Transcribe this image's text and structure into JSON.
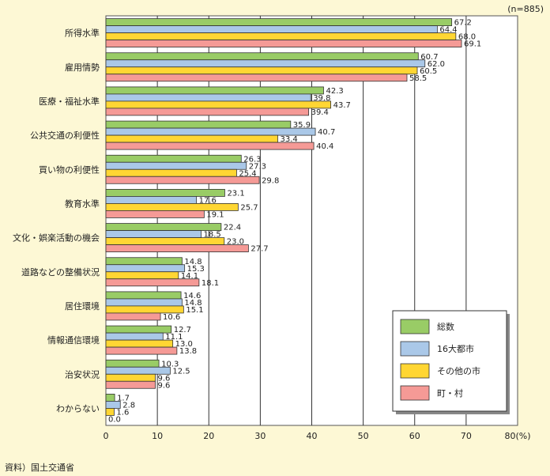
{
  "note": "(n=885)",
  "source": "資料）国土交通省",
  "chart_data": {
    "type": "bar",
    "orientation": "horizontal",
    "xlim": [
      0,
      80
    ],
    "xticks": [
      "0",
      "10",
      "20",
      "30",
      "40",
      "50",
      "60",
      "70",
      "80(%)"
    ],
    "grid": true,
    "legend_position": "bottom-right",
    "categories": [
      "所得水準",
      "雇用情勢",
      "医療・福祉水準",
      "公共交通の利便性",
      "買い物の利便性",
      "教育水準",
      "文化・娯楽活動の機会",
      "道路などの整備状況",
      "居住環境",
      "情報通信環境",
      "治安状況",
      "わからない"
    ],
    "series": [
      {
        "name": "総数",
        "color": "#99cc66",
        "values": [
          67.2,
          60.7,
          42.3,
          35.9,
          26.3,
          23.1,
          22.4,
          14.8,
          14.6,
          12.7,
          10.3,
          1.7
        ]
      },
      {
        "name": "16大都市",
        "color": "#aac8e8",
        "values": [
          64.4,
          62.0,
          39.8,
          40.7,
          27.3,
          17.6,
          18.5,
          15.3,
          14.8,
          11.1,
          12.5,
          2.8
        ]
      },
      {
        "name": "その他の市",
        "color": "#ffd633",
        "values": [
          68.0,
          60.5,
          43.7,
          33.4,
          25.4,
          25.7,
          23.0,
          14.1,
          15.1,
          13.0,
          9.6,
          1.6
        ]
      },
      {
        "name": "町・村",
        "color": "#f59a96",
        "values": [
          69.1,
          58.5,
          39.4,
          40.4,
          29.8,
          19.1,
          27.7,
          18.1,
          10.6,
          13.8,
          9.6,
          0.0
        ]
      }
    ]
  }
}
